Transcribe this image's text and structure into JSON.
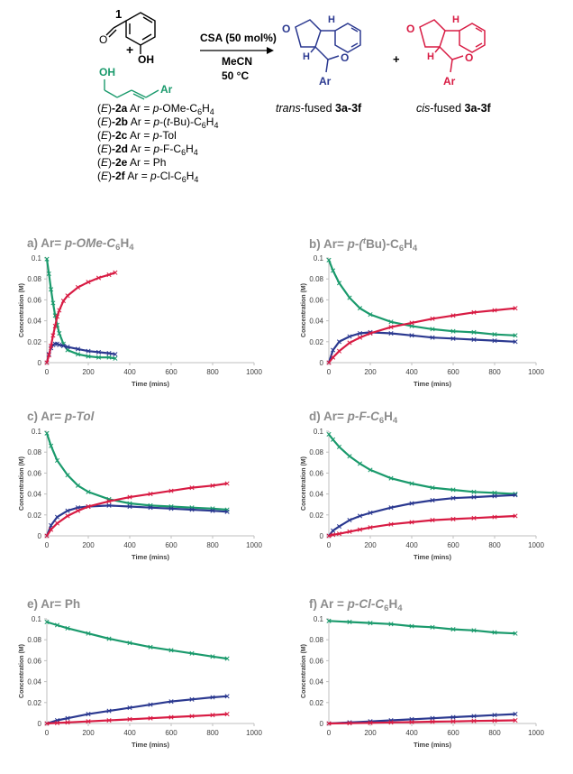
{
  "scheme": {
    "label_1": "1",
    "oh_top": "OH",
    "oh_green": "OH",
    "ar_green": "Ar",
    "plus1": "+",
    "plus2": "+",
    "reagent": "CSA (50 mol%)",
    "solvent": "MeCN",
    "temp": "50 °C",
    "trans_caption_italic": "trans",
    "trans_caption_rest": "-fused ",
    "trans_caption_bold": "3a-3f",
    "cis_caption_italic": "cis",
    "cis_caption_rest": "-fused ",
    "cis_caption_bold": "3a-3f",
    "atom_H_top": "H",
    "atom_H_low": "H",
    "atom_O_ring": "O",
    "atom_O_pyran": "O",
    "atom_Ar": "Ar",
    "substrates": [
      {
        "e": "E",
        "id": "-2a",
        "ar": "p-OMe-C6H4"
      },
      {
        "e": "E",
        "id": "-2b",
        "ar": "p-(t-Bu)-C6H4"
      },
      {
        "e": "E",
        "id": "-2c",
        "ar": "p-Tol"
      },
      {
        "e": "E",
        "id": "-2d",
        "ar": "p-F-C6H4"
      },
      {
        "e": "E",
        "id": "-2e",
        "ar": "Ph"
      },
      {
        "e": "E",
        "id": "-2f",
        "ar": "p-Cl-C6H4"
      }
    ]
  },
  "panels": [
    {
      "title_prefix": "a) Ar= ",
      "title_main": "p-OMe-C",
      "sub1": "6",
      "mid": "H",
      "sub2": "4",
      "tail": ""
    },
    {
      "title_prefix": "b) Ar= ",
      "title_main": "p-(",
      "sup": "t",
      "mid": "Bu)-C",
      "sub1": "6",
      "mid2": "H",
      "sub2": "4"
    },
    {
      "title_prefix": "c) Ar= ",
      "title_main": "p-Tol"
    },
    {
      "title_prefix": "d) Ar= ",
      "title_main": "p-F-C",
      "sub1": "6",
      "mid": "H",
      "sub2": "4"
    },
    {
      "title_prefix": "e) Ar= ",
      "title_main": "Ph"
    },
    {
      "title_prefix": "f) Ar = ",
      "title_main": "p-Cl-C",
      "sub1": "6",
      "mid": "H",
      "sub2": "4"
    }
  ],
  "colors": {
    "green": "#1a9a6c",
    "blue": "#2b3990",
    "red": "#d81b43",
    "axis": "#bfbfbf",
    "text": "#404040"
  },
  "chart_data": [
    {
      "type": "scatter",
      "xlabel": "Time (mins)",
      "ylabel": "Concentration   (M)",
      "xlim": [
        0,
        1000
      ],
      "ylim": [
        0,
        0.1
      ],
      "xticks": [
        0,
        200,
        400,
        600,
        800,
        1000
      ],
      "yticks": [
        0,
        0.02,
        0.04,
        0.06,
        0.08,
        0.1
      ],
      "series": [
        {
          "color": "green",
          "x": [
            0,
            10,
            20,
            30,
            40,
            50,
            60,
            80,
            100,
            150,
            200,
            250,
            300,
            330
          ],
          "y": [
            0.099,
            0.085,
            0.07,
            0.057,
            0.045,
            0.036,
            0.028,
            0.018,
            0.012,
            0.008,
            0.006,
            0.005,
            0.005,
            0.004
          ]
        },
        {
          "color": "blue",
          "x": [
            0,
            10,
            20,
            30,
            40,
            50,
            60,
            80,
            100,
            150,
            200,
            250,
            300,
            330
          ],
          "y": [
            0.0,
            0.008,
            0.014,
            0.017,
            0.018,
            0.018,
            0.017,
            0.016,
            0.015,
            0.013,
            0.011,
            0.01,
            0.009,
            0.008
          ]
        },
        {
          "color": "red",
          "x": [
            0,
            10,
            20,
            30,
            40,
            50,
            60,
            80,
            100,
            150,
            200,
            250,
            300,
            330
          ],
          "y": [
            0.0,
            0.007,
            0.016,
            0.026,
            0.035,
            0.044,
            0.05,
            0.059,
            0.064,
            0.072,
            0.077,
            0.081,
            0.084,
            0.086
          ]
        }
      ]
    },
    {
      "type": "scatter",
      "xlabel": "Time (mins)",
      "ylabel": "Concentration   (M)",
      "xlim": [
        0,
        1000
      ],
      "ylim": [
        0,
        0.1
      ],
      "xticks": [
        0,
        200,
        400,
        600,
        800,
        1000
      ],
      "yticks": [
        0,
        0.02,
        0.04,
        0.06,
        0.08,
        0.1
      ],
      "series": [
        {
          "color": "green",
          "x": [
            0,
            20,
            50,
            100,
            150,
            200,
            300,
            400,
            500,
            600,
            700,
            800,
            900
          ],
          "y": [
            0.098,
            0.088,
            0.076,
            0.062,
            0.052,
            0.046,
            0.039,
            0.035,
            0.032,
            0.03,
            0.029,
            0.027,
            0.026
          ]
        },
        {
          "color": "blue",
          "x": [
            0,
            20,
            50,
            100,
            150,
            200,
            300,
            400,
            500,
            600,
            700,
            800,
            900
          ],
          "y": [
            0.0,
            0.012,
            0.02,
            0.025,
            0.028,
            0.029,
            0.028,
            0.026,
            0.024,
            0.023,
            0.022,
            0.021,
            0.02
          ]
        },
        {
          "color": "red",
          "x": [
            0,
            20,
            50,
            100,
            150,
            200,
            300,
            400,
            500,
            600,
            700,
            800,
            900
          ],
          "y": [
            0.0,
            0.005,
            0.011,
            0.019,
            0.024,
            0.028,
            0.034,
            0.038,
            0.042,
            0.045,
            0.048,
            0.05,
            0.052
          ]
        }
      ]
    },
    {
      "type": "scatter",
      "xlabel": "Time (mins)",
      "ylabel": "Concentration   (M)",
      "xlim": [
        0,
        1000
      ],
      "ylim": [
        0,
        0.1
      ],
      "xticks": [
        0,
        200,
        400,
        600,
        800,
        1000
      ],
      "yticks": [
        0,
        0.02,
        0.04,
        0.06,
        0.08,
        0.1
      ],
      "series": [
        {
          "color": "green",
          "x": [
            0,
            20,
            50,
            100,
            150,
            200,
            300,
            400,
            500,
            600,
            700,
            800,
            870
          ],
          "y": [
            0.098,
            0.086,
            0.072,
            0.058,
            0.048,
            0.042,
            0.035,
            0.031,
            0.029,
            0.028,
            0.027,
            0.026,
            0.025
          ]
        },
        {
          "color": "blue",
          "x": [
            0,
            20,
            50,
            100,
            150,
            200,
            300,
            400,
            500,
            600,
            700,
            800,
            870
          ],
          "y": [
            0.0,
            0.01,
            0.018,
            0.024,
            0.027,
            0.028,
            0.029,
            0.028,
            0.027,
            0.026,
            0.025,
            0.024,
            0.023
          ]
        },
        {
          "color": "red",
          "x": [
            0,
            20,
            50,
            100,
            150,
            200,
            300,
            400,
            500,
            600,
            700,
            800,
            870
          ],
          "y": [
            0.0,
            0.006,
            0.012,
            0.019,
            0.024,
            0.028,
            0.033,
            0.037,
            0.04,
            0.043,
            0.046,
            0.048,
            0.05
          ]
        }
      ]
    },
    {
      "type": "scatter",
      "xlabel": "Time (mins)",
      "ylabel": "Concentration   (M)",
      "xlim": [
        0,
        1000
      ],
      "ylim": [
        0,
        0.1
      ],
      "xticks": [
        0,
        200,
        400,
        600,
        800,
        1000
      ],
      "yticks": [
        0,
        0.02,
        0.04,
        0.06,
        0.08,
        0.1
      ],
      "series": [
        {
          "color": "green",
          "x": [
            0,
            20,
            50,
            100,
            150,
            200,
            300,
            400,
            500,
            600,
            700,
            800,
            900
          ],
          "y": [
            0.097,
            0.092,
            0.085,
            0.076,
            0.069,
            0.063,
            0.055,
            0.05,
            0.046,
            0.044,
            0.042,
            0.041,
            0.04
          ]
        },
        {
          "color": "blue",
          "x": [
            0,
            20,
            50,
            100,
            150,
            200,
            300,
            400,
            500,
            600,
            700,
            800,
            900
          ],
          "y": [
            0.0,
            0.005,
            0.009,
            0.015,
            0.019,
            0.022,
            0.027,
            0.031,
            0.034,
            0.036,
            0.037,
            0.038,
            0.039
          ]
        },
        {
          "color": "red",
          "x": [
            0,
            20,
            50,
            100,
            150,
            200,
            300,
            400,
            500,
            600,
            700,
            800,
            900
          ],
          "y": [
            0.0,
            0.001,
            0.002,
            0.004,
            0.006,
            0.008,
            0.011,
            0.013,
            0.015,
            0.016,
            0.017,
            0.018,
            0.019
          ]
        }
      ]
    },
    {
      "type": "scatter",
      "xlabel": "Time (mins)",
      "ylabel": "Concentration   (M)",
      "xlim": [
        0,
        1000
      ],
      "ylim": [
        0,
        0.1
      ],
      "xticks": [
        0,
        200,
        400,
        600,
        800,
        1000
      ],
      "yticks": [
        0,
        0.02,
        0.04,
        0.06,
        0.08,
        0.1
      ],
      "series": [
        {
          "color": "green",
          "x": [
            0,
            50,
            100,
            200,
            300,
            400,
            500,
            600,
            700,
            800,
            870
          ],
          "y": [
            0.097,
            0.094,
            0.091,
            0.086,
            0.081,
            0.077,
            0.073,
            0.07,
            0.067,
            0.064,
            0.062
          ]
        },
        {
          "color": "blue",
          "x": [
            0,
            50,
            100,
            200,
            300,
            400,
            500,
            600,
            700,
            800,
            870
          ],
          "y": [
            0.0,
            0.003,
            0.005,
            0.009,
            0.012,
            0.015,
            0.018,
            0.021,
            0.023,
            0.025,
            0.026
          ]
        },
        {
          "color": "red",
          "x": [
            0,
            50,
            100,
            200,
            300,
            400,
            500,
            600,
            700,
            800,
            870
          ],
          "y": [
            0.0,
            0.0005,
            0.001,
            0.002,
            0.003,
            0.004,
            0.005,
            0.006,
            0.007,
            0.008,
            0.009
          ]
        }
      ]
    },
    {
      "type": "scatter",
      "xlabel": "Time (mins)",
      "ylabel": "Concentration   (M)",
      "xlim": [
        0,
        1000
      ],
      "ylim": [
        0,
        0.1
      ],
      "xticks": [
        0,
        200,
        400,
        600,
        800,
        1000
      ],
      "yticks": [
        0,
        0.02,
        0.04,
        0.06,
        0.08,
        0.1
      ],
      "series": [
        {
          "color": "green",
          "x": [
            0,
            100,
            200,
            300,
            400,
            500,
            600,
            700,
            800,
            900
          ],
          "y": [
            0.098,
            0.097,
            0.096,
            0.095,
            0.093,
            0.092,
            0.09,
            0.089,
            0.087,
            0.086
          ]
        },
        {
          "color": "blue",
          "x": [
            0,
            100,
            200,
            300,
            400,
            500,
            600,
            700,
            800,
            900
          ],
          "y": [
            0.0,
            0.001,
            0.002,
            0.003,
            0.004,
            0.005,
            0.006,
            0.007,
            0.008,
            0.009
          ]
        },
        {
          "color": "red",
          "x": [
            0,
            100,
            200,
            300,
            400,
            500,
            600,
            700,
            800,
            900
          ],
          "y": [
            0.0,
            0.0003,
            0.0006,
            0.001,
            0.0013,
            0.0017,
            0.002,
            0.0024,
            0.0027,
            0.003
          ]
        }
      ]
    }
  ]
}
